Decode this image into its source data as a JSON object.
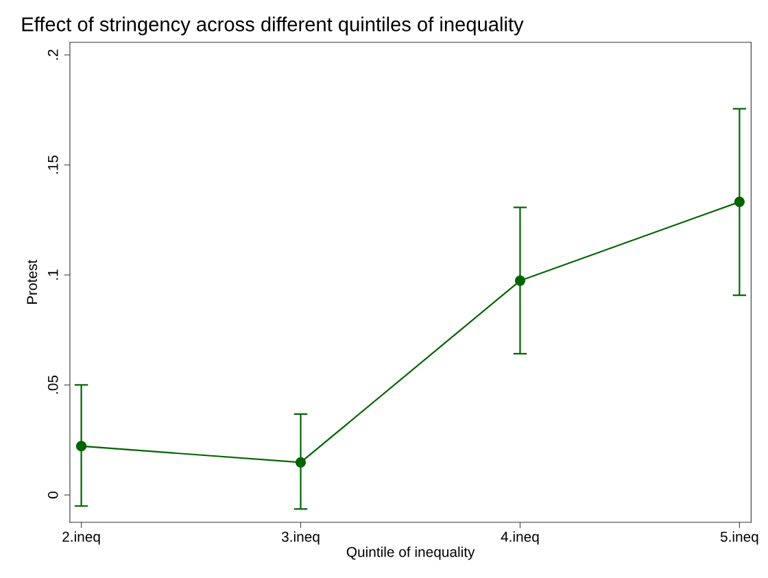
{
  "chart_data": {
    "type": "line",
    "title": "Effect of stringency across different quintiles of inequality",
    "xlabel": "Quintile of inequality",
    "ylabel": "Protest",
    "categories": [
      "2.ineq",
      "3.ineq",
      "4.ineq",
      "5.ineq"
    ],
    "series": [
      {
        "color": "#006400",
        "values": [
          0.0222,
          0.0148,
          0.0974,
          0.1332
        ],
        "errors": [
          [
            -0.005,
            0.05
          ],
          [
            -0.0064,
            0.0368
          ],
          [
            0.0642,
            0.1307
          ],
          [
            0.0908,
            0.1755
          ]
        ]
      }
    ],
    "ylim": [
      -0.0124,
      0.2057
    ],
    "yticks": [
      {
        "value": 0,
        "label": "0"
      },
      {
        "value": 0.05,
        "label": ".05"
      },
      {
        "value": 0.1,
        "label": ".1"
      },
      {
        "value": 0.15,
        "label": ".15"
      },
      {
        "value": 0.2,
        "label": ".2"
      }
    ],
    "marker": "circle",
    "line_style": "solid",
    "grid": false,
    "legend": false
  }
}
